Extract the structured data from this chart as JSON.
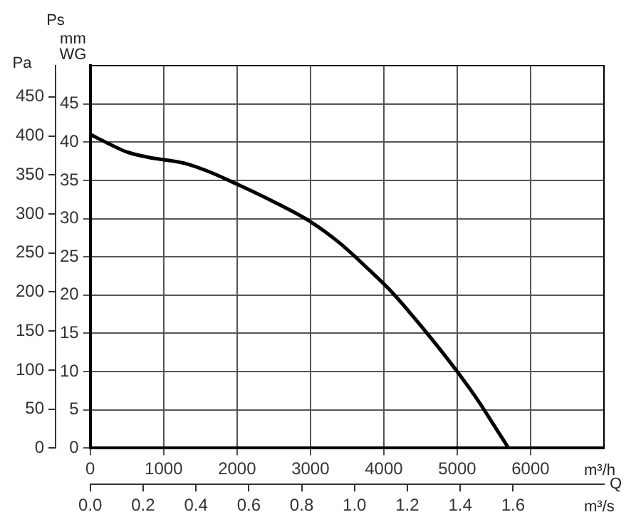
{
  "chart_data": {
    "type": "line",
    "xlabel": "m³/h",
    "ylabel": "mm WG",
    "y2label": "Pa",
    "x2label": "m³/s",
    "annotations": [
      "Ps",
      "Q"
    ],
    "x": [
      0,
      250,
      500,
      800,
      1000,
      1300,
      1600,
      2000,
      2500,
      3000,
      3400,
      3800,
      4100,
      4400,
      4700,
      5000,
      5300,
      5500,
      5700
    ],
    "series": [
      {
        "color": "#000000",
        "values": [
          41,
          39.8,
          38.7,
          38,
          37.7,
          37.2,
          36.2,
          34.5,
          32.2,
          29.6,
          26.8,
          23.3,
          20.5,
          17.2,
          13.7,
          10,
          6,
          3,
          0
        ]
      }
    ],
    "xlim": [
      0,
      7000
    ],
    "xticks": [
      0,
      1000,
      2000,
      3000,
      4000,
      5000,
      6000
    ],
    "ylim": [
      0,
      50
    ],
    "yticks": [
      0,
      5,
      10,
      15,
      20,
      25,
      30,
      35,
      40,
      45
    ],
    "y2lim": [
      0,
      490
    ],
    "y2ticks": [
      0,
      50,
      100,
      150,
      200,
      250,
      300,
      350,
      400,
      450
    ],
    "x2lim": [
      0,
      1.944
    ],
    "x2ticks": [
      {
        "value": 0,
        "label": "0.0"
      },
      0.2,
      0.4,
      0.6,
      0.8,
      {
        "value": 1,
        "label": "1.0"
      },
      1.2,
      1.4,
      1.6
    ],
    "grid": true,
    "legend": false,
    "marker": "none",
    "line_style": "solid"
  }
}
